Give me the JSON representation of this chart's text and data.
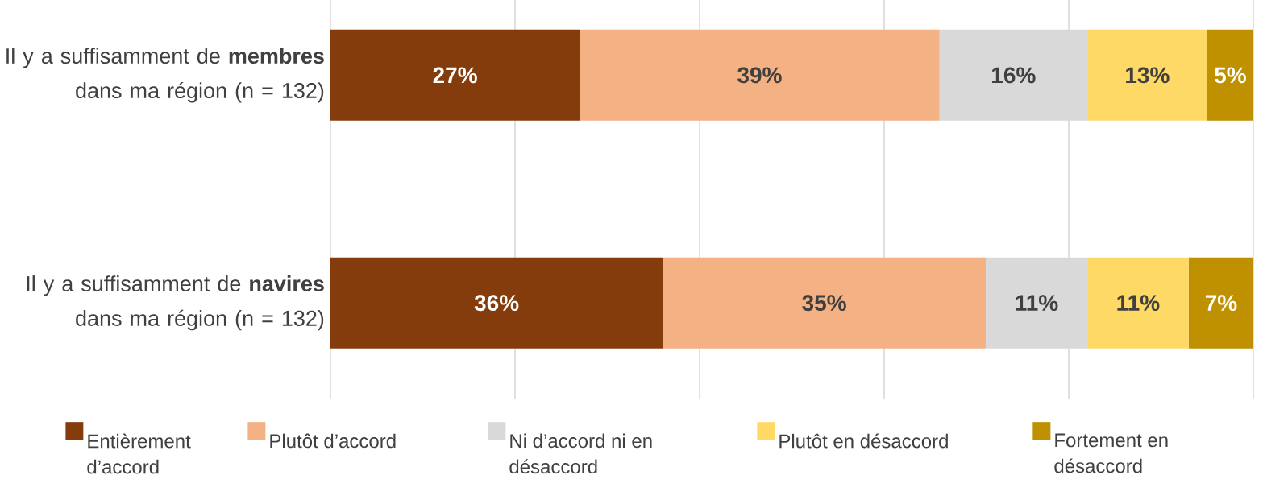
{
  "chart_data": {
    "type": "bar",
    "orientation": "horizontal",
    "stacked": true,
    "categories": [
      "Il y a suffisamment de **membres** dans ma région (n = 132)",
      "Il y a suffisamment de **navires** dans ma région (n = 132)"
    ],
    "series": [
      {
        "name": "Entièrement d’accord",
        "color": "#843c0c",
        "values": [
          27,
          36
        ],
        "value_labels": [
          "27%",
          "36%"
        ]
      },
      {
        "name": "Plutôt d’accord",
        "color": "#f4b183",
        "values": [
          39,
          35
        ],
        "value_labels": [
          "39%",
          "35%"
        ]
      },
      {
        "name": "Ni d’accord ni en désaccord",
        "color": "#d9d9d9",
        "values": [
          16,
          11
        ],
        "value_labels": [
          "16%",
          "11%"
        ]
      },
      {
        "name": "Plutôt en désaccord",
        "color": "#ffd966",
        "values": [
          13,
          11
        ],
        "value_labels": [
          "13%",
          "11%"
        ]
      },
      {
        "name": "Fortement en désaccord",
        "color": "#bf9000",
        "values": [
          5,
          7
        ],
        "value_labels": [
          "5%",
          "7%"
        ]
      }
    ],
    "xlim": [
      0,
      100
    ],
    "xticks": [
      {
        "value": 0,
        "label": null
      },
      {
        "value": 20,
        "label": null
      },
      {
        "value": 40,
        "label": null
      },
      {
        "value": 60,
        "label": null
      },
      {
        "value": 80,
        "label": null
      },
      {
        "value": 100,
        "label": null
      }
    ],
    "grid": "x",
    "tick_labels": "y",
    "legend": "bottom"
  }
}
